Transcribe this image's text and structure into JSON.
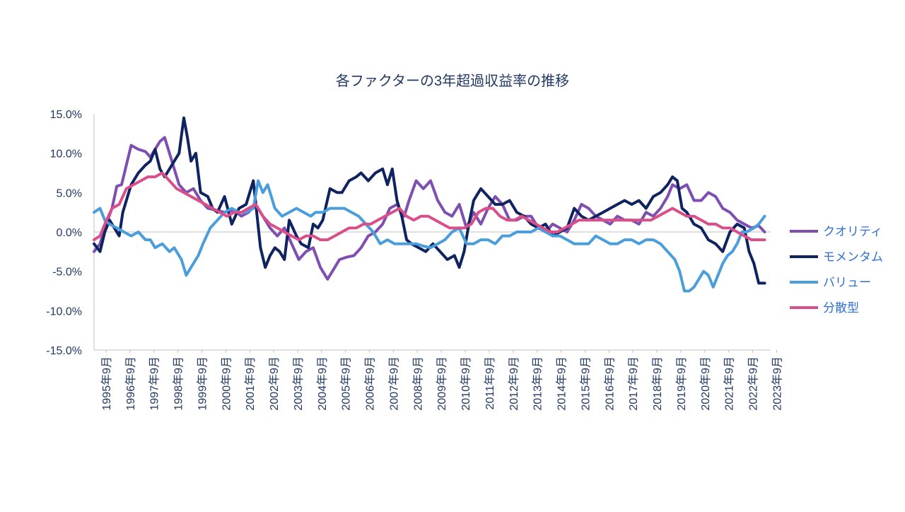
{
  "chart_data": {
    "type": "line",
    "title": "各ファクターの3年超過収益率の推移",
    "xlabel": "",
    "ylabel": "",
    "ylim": [
      -15,
      15
    ],
    "yticks": [
      15,
      10,
      5,
      0,
      -5,
      -10,
      -15
    ],
    "ytick_labels": [
      "15.0%",
      "10.0%",
      "5.0%",
      "0.0%",
      "-5.0%",
      "-10.0%",
      "-15.0%"
    ],
    "x_start": 1995.75,
    "x_end": 2024.0,
    "xtick_labels": [
      "1995年9月",
      "1996年9月",
      "1997年9月",
      "1998年9月",
      "1999年9月",
      "2000年9月",
      "2001年9月",
      "2002年9月",
      "2003年9月",
      "2004年9月",
      "2005年9月",
      "2006年9月",
      "2007年9月",
      "2008年9月",
      "2009年9月",
      "2010年9月",
      "2011年9月",
      "2012年9月",
      "2013年9月",
      "2014年9月",
      "2015年9月",
      "2016年9月",
      "2017年9月",
      "2018年9月",
      "2019年9月",
      "2020年9月",
      "2021年9月",
      "2022年9月",
      "2023年9月"
    ],
    "legend_position": "right",
    "series": [
      {
        "name": "クオリティ",
        "color": "#7e4fb0",
        "x": [
          1995.75,
          1996.0,
          1996.2,
          1996.5,
          1996.7,
          1996.9,
          1997.1,
          1997.3,
          1997.6,
          1997.9,
          1998.1,
          1998.3,
          1998.5,
          1998.7,
          1998.9,
          1999.1,
          1999.3,
          1999.6,
          1999.9,
          2000.2,
          2000.5,
          2000.8,
          2001.2,
          2001.6,
          2001.9,
          2002.2,
          2002.5,
          2002.8,
          2003.1,
          2003.4,
          2003.7,
          2004.0,
          2004.3,
          2004.6,
          2004.9,
          2005.2,
          2005.5,
          2005.8,
          2006.0,
          2006.3,
          2006.6,
          2006.9,
          2007.2,
          2007.5,
          2007.8,
          2008.1,
          2008.4,
          2008.7,
          2008.9,
          2009.2,
          2009.5,
          2009.8,
          2010.1,
          2010.4,
          2010.7,
          2011.0,
          2011.3,
          2011.6,
          2011.9,
          2012.2,
          2012.5,
          2012.8,
          2013.1,
          2013.4,
          2013.7,
          2014.0,
          2014.3,
          2014.6,
          2014.9,
          2015.2,
          2015.5,
          2015.8,
          2016.1,
          2016.4,
          2016.7,
          2017.0,
          2017.3,
          2017.6,
          2017.9,
          2018.2,
          2018.5,
          2018.8,
          2019.1,
          2019.4,
          2019.7,
          2019.9,
          2020.2,
          2020.5,
          2020.8,
          2021.1,
          2021.4,
          2021.7,
          2022.0,
          2022.3,
          2022.6,
          2022.9,
          2023.2,
          2023.5,
          2023.75
        ],
        "y": [
          -2.5,
          -1.5,
          0.5,
          3.0,
          5.8,
          6.0,
          8.5,
          11.0,
          10.5,
          10.2,
          9.5,
          10.5,
          11.5,
          12.0,
          10.0,
          8.0,
          6.0,
          5.0,
          5.5,
          4.0,
          3.0,
          2.8,
          2.5,
          2.8,
          2.0,
          2.5,
          3.5,
          2.0,
          0.5,
          -0.5,
          0.5,
          -1.5,
          -3.5,
          -2.5,
          -2.0,
          -4.5,
          -6.0,
          -4.5,
          -3.5,
          -3.2,
          -3.0,
          -2.0,
          -0.5,
          0.0,
          1.0,
          3.0,
          3.5,
          2.0,
          4.0,
          6.5,
          5.5,
          6.5,
          4.0,
          2.5,
          2.0,
          3.5,
          0.5,
          2.5,
          1.0,
          3.0,
          4.5,
          3.5,
          1.5,
          1.5,
          2.0,
          2.0,
          0.5,
          0.0,
          1.0,
          0.5,
          0.0,
          1.5,
          3.5,
          3.0,
          2.0,
          1.5,
          1.0,
          2.0,
          1.5,
          1.5,
          1.0,
          2.5,
          2.0,
          3.0,
          4.5,
          6.0,
          5.5,
          6.0,
          4.0,
          4.0,
          5.0,
          4.5,
          3.0,
          2.5,
          1.5,
          1.0,
          0.5,
          0.8,
          0.0
        ]
      },
      {
        "name": "モメンタム",
        "color": "#0f2360",
        "x": [
          1995.75,
          1996.0,
          1996.2,
          1996.4,
          1996.6,
          1996.8,
          1996.95,
          1997.1,
          1997.3,
          1997.6,
          1997.9,
          1998.1,
          1998.3,
          1998.5,
          1998.7,
          1998.9,
          1999.1,
          1999.3,
          1999.5,
          1999.65,
          1999.8,
          2000.0,
          2000.2,
          2000.5,
          2000.7,
          2000.9,
          2001.2,
          2001.5,
          2001.8,
          2002.1,
          2002.4,
          2002.7,
          2002.9,
          2003.1,
          2003.3,
          2003.5,
          2003.7,
          2003.9,
          2004.2,
          2004.4,
          2004.7,
          2004.9,
          2005.1,
          2005.3,
          2005.6,
          2005.9,
          2006.1,
          2006.4,
          2006.7,
          2006.9,
          2007.2,
          2007.5,
          2007.8,
          2008.0,
          2008.2,
          2008.4,
          2008.6,
          2008.8,
          2009.0,
          2009.3,
          2009.6,
          2009.9,
          2010.2,
          2010.5,
          2010.8,
          2011.0,
          2011.2,
          2011.4,
          2011.6,
          2011.9,
          2012.2,
          2012.5,
          2012.8,
          2013.1,
          2013.4,
          2013.7,
          2014.0,
          2014.3,
          2014.6,
          2014.9,
          2015.2,
          2015.5,
          2015.8,
          2016.1,
          2016.4,
          2016.7,
          2017.0,
          2017.3,
          2017.6,
          2017.9,
          2018.2,
          2018.5,
          2018.8,
          2019.1,
          2019.4,
          2019.7,
          2019.9,
          2020.1,
          2020.3,
          2020.5,
          2020.8,
          2021.1,
          2021.4,
          2021.7,
          2022.0,
          2022.3,
          2022.6,
          2022.9,
          2023.1,
          2023.3,
          2023.5,
          2023.75
        ],
        "y": [
          -1.5,
          -2.5,
          0.0,
          1.5,
          0.5,
          -0.5,
          2.5,
          4.0,
          6.0,
          7.5,
          8.5,
          9.0,
          10.5,
          8.0,
          7.0,
          8.0,
          9.0,
          10.0,
          14.5,
          12.0,
          9.0,
          10.0,
          5.0,
          4.5,
          3.0,
          2.5,
          4.5,
          1.0,
          3.0,
          3.5,
          6.5,
          -2.0,
          -4.5,
          -3.0,
          -2.0,
          -2.5,
          -3.5,
          1.5,
          -0.5,
          -1.5,
          -2.0,
          1.0,
          0.5,
          1.5,
          5.5,
          5.0,
          5.0,
          6.5,
          7.0,
          7.5,
          6.5,
          7.5,
          8.0,
          6.0,
          8.0,
          4.0,
          2.0,
          -1.0,
          -1.5,
          -2.0,
          -2.5,
          -1.5,
          -2.5,
          -3.5,
          -3.0,
          -4.5,
          -2.5,
          1.0,
          4.0,
          5.5,
          4.5,
          3.5,
          3.5,
          4.0,
          2.5,
          2.0,
          1.0,
          0.5,
          1.0,
          -0.5,
          0.0,
          0.5,
          3.0,
          2.0,
          1.5,
          2.0,
          2.5,
          3.0,
          3.5,
          4.0,
          3.5,
          4.0,
          3.0,
          4.5,
          5.0,
          6.0,
          7.0,
          6.5,
          3.0,
          2.5,
          1.0,
          0.5,
          -1.0,
          -1.5,
          -2.5,
          0.0,
          1.0,
          0.5,
          -2.5,
          -4.0,
          -6.5,
          -6.5
        ]
      },
      {
        "name": "バリュー",
        "color": "#4a9edb",
        "x": [
          1995.75,
          1996.0,
          1996.2,
          1996.4,
          1996.7,
          1997.0,
          1997.3,
          1997.6,
          1997.9,
          1998.1,
          1998.3,
          1998.6,
          1998.9,
          1999.1,
          1999.4,
          1999.6,
          1999.9,
          2000.1,
          2000.3,
          2000.6,
          2000.9,
          2001.2,
          2001.5,
          2001.8,
          2002.1,
          2002.4,
          2002.6,
          2002.8,
          2003.0,
          2003.3,
          2003.6,
          2003.9,
          2004.2,
          2004.5,
          2004.8,
          2005.0,
          2005.3,
          2005.6,
          2005.9,
          2006.2,
          2006.5,
          2006.8,
          2007.1,
          2007.4,
          2007.7,
          2008.0,
          2008.3,
          2008.6,
          2008.9,
          2009.2,
          2009.5,
          2009.8,
          2010.1,
          2010.4,
          2010.7,
          2011.0,
          2011.3,
          2011.6,
          2011.9,
          2012.2,
          2012.5,
          2012.8,
          2013.1,
          2013.4,
          2013.7,
          2014.0,
          2014.3,
          2014.6,
          2014.9,
          2015.2,
          2015.5,
          2015.8,
          2016.1,
          2016.4,
          2016.7,
          2017.0,
          2017.3,
          2017.6,
          2017.9,
          2018.2,
          2018.5,
          2018.8,
          2019.1,
          2019.4,
          2019.7,
          2020.0,
          2020.2,
          2020.4,
          2020.6,
          2020.8,
          2021.0,
          2021.2,
          2021.4,
          2021.6,
          2021.8,
          2022.0,
          2022.2,
          2022.4,
          2022.6,
          2022.8,
          2023.0,
          2023.3,
          2023.5,
          2023.75
        ],
        "y": [
          2.5,
          3.0,
          1.5,
          1.0,
          0.5,
          0.0,
          -0.5,
          0.0,
          -1.0,
          -1.0,
          -2.0,
          -1.5,
          -2.5,
          -2.0,
          -3.5,
          -5.5,
          -4.0,
          -3.0,
          -1.5,
          0.5,
          1.5,
          2.5,
          3.0,
          2.5,
          2.5,
          3.0,
          6.5,
          5.0,
          6.0,
          3.0,
          2.0,
          2.5,
          3.0,
          2.5,
          2.0,
          2.5,
          2.5,
          3.0,
          3.0,
          3.0,
          2.5,
          2.0,
          1.0,
          0.0,
          -1.5,
          -1.0,
          -1.5,
          -1.5,
          -1.5,
          -1.5,
          -1.8,
          -2.0,
          -1.5,
          -1.0,
          0.0,
          0.5,
          -1.5,
          -1.5,
          -1.0,
          -1.0,
          -1.5,
          -0.5,
          -0.5,
          0.0,
          0.0,
          0.0,
          0.5,
          0.0,
          -0.5,
          -0.5,
          -1.0,
          -1.5,
          -1.5,
          -1.5,
          -0.5,
          -1.0,
          -1.5,
          -1.5,
          -1.0,
          -1.0,
          -1.5,
          -1.0,
          -1.0,
          -1.5,
          -2.5,
          -3.5,
          -5.0,
          -7.5,
          -7.5,
          -7.0,
          -6.0,
          -5.0,
          -5.5,
          -7.0,
          -5.5,
          -4.0,
          -3.0,
          -2.5,
          -1.5,
          0.0,
          0.0,
          0.5,
          1.0,
          2.0
        ]
      },
      {
        "name": "分散型",
        "color": "#d94f8a",
        "x": [
          1995.75,
          1996.0,
          1996.2,
          1996.5,
          1996.8,
          1997.1,
          1997.4,
          1997.7,
          1998.0,
          1998.3,
          1998.6,
          1998.9,
          1999.2,
          1999.5,
          1999.8,
          2000.1,
          2000.4,
          2000.7,
          2001.0,
          2001.3,
          2001.6,
          2001.9,
          2002.2,
          2002.5,
          2002.8,
          2003.1,
          2003.4,
          2003.7,
          2004.0,
          2004.3,
          2004.6,
          2004.9,
          2005.2,
          2005.5,
          2005.8,
          2006.1,
          2006.4,
          2006.7,
          2007.0,
          2007.3,
          2007.6,
          2007.9,
          2008.2,
          2008.5,
          2008.8,
          2009.1,
          2009.4,
          2009.7,
          2010.0,
          2010.3,
          2010.6,
          2010.9,
          2011.2,
          2011.5,
          2011.8,
          2012.1,
          2012.4,
          2012.7,
          2013.0,
          2013.3,
          2013.6,
          2013.9,
          2014.2,
          2014.5,
          2014.8,
          2015.1,
          2015.4,
          2015.7,
          2016.0,
          2016.3,
          2016.6,
          2016.9,
          2017.2,
          2017.5,
          2017.8,
          2018.1,
          2018.4,
          2018.7,
          2019.0,
          2019.3,
          2019.6,
          2019.9,
          2020.2,
          2020.5,
          2020.8,
          2021.1,
          2021.4,
          2021.7,
          2022.0,
          2022.3,
          2022.6,
          2022.9,
          2023.2,
          2023.5,
          2023.75
        ],
        "y": [
          -1.0,
          -0.5,
          1.0,
          3.0,
          3.5,
          5.5,
          6.0,
          6.5,
          7.0,
          7.0,
          7.5,
          6.5,
          5.5,
          5.0,
          4.5,
          4.0,
          3.5,
          3.0,
          2.5,
          2.0,
          2.5,
          2.5,
          3.0,
          3.5,
          2.0,
          1.0,
          0.5,
          0.0,
          -0.5,
          -1.0,
          -0.5,
          -0.5,
          -1.0,
          -1.0,
          -0.5,
          0.0,
          0.5,
          0.5,
          1.0,
          1.0,
          1.5,
          2.0,
          2.5,
          3.0,
          2.0,
          1.5,
          2.0,
          2.0,
          1.5,
          1.0,
          0.5,
          0.5,
          0.5,
          1.0,
          2.5,
          3.0,
          3.0,
          2.0,
          1.5,
          1.5,
          2.0,
          1.5,
          1.0,
          0.5,
          0.0,
          0.0,
          0.5,
          1.0,
          1.5,
          1.5,
          1.5,
          1.5,
          1.5,
          1.5,
          1.5,
          1.5,
          1.5,
          1.5,
          1.5,
          2.0,
          2.5,
          3.0,
          2.5,
          2.0,
          2.0,
          1.5,
          1.0,
          1.0,
          0.5,
          0.5,
          0.0,
          -0.5,
          -1.0,
          -1.0,
          -1.0
        ]
      }
    ]
  }
}
